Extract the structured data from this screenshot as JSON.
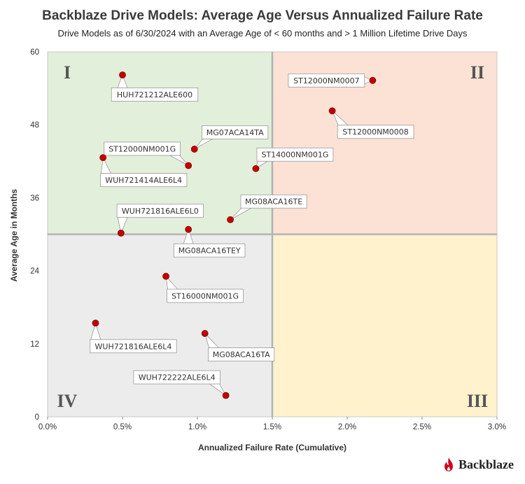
{
  "chart_data": {
    "type": "scatter",
    "title": "Backblaze Drive Models: Average Age Versus Annualized Failure Rate",
    "subtitle": "Drive Models as of 6/30/2024 with an Average Age of < 60 months and > 1 Million Lifetime Drive Days",
    "xlabel": "Annualized Failure Rate (Cumulative)",
    "ylabel": "Average Age in Months",
    "xlim": [
      0,
      3.0
    ],
    "ylim": [
      0,
      60
    ],
    "xticks": [
      0,
      0.5,
      1.0,
      1.5,
      2.0,
      2.5,
      3.0
    ],
    "xtick_labels": [
      "0.0%",
      "0.5%",
      "1.0%",
      "1.5%",
      "2.0%",
      "2.5%",
      "3.0%"
    ],
    "yticks": [
      0,
      12,
      24,
      36,
      48,
      60
    ],
    "ytick_labels": [
      "0",
      "12",
      "24",
      "36",
      "48",
      "60"
    ],
    "quadrant_split": {
      "x": 1.5,
      "y": 30
    },
    "quadrant_labels": [
      "I",
      "II",
      "III",
      "IV"
    ],
    "quadrant_colors": {
      "I": "#e2efda",
      "II": "#fbe2d5",
      "III": "#fff2cc",
      "IV": "#ececec"
    },
    "point_color": "#c00000",
    "points": [
      {
        "label": "HUH721212ALE600",
        "x": 0.5,
        "y": 56.2
      },
      {
        "label": "ST12000NM0007",
        "x": 2.17,
        "y": 55.3
      },
      {
        "label": "ST12000NM0008",
        "x": 1.9,
        "y": 50.3
      },
      {
        "label": "MG07ACA14TA",
        "x": 0.98,
        "y": 44.0
      },
      {
        "label": "ST12000NM001G",
        "x": 0.94,
        "y": 41.3
      },
      {
        "label": "WUH721414ALE6L4",
        "x": 0.37,
        "y": 42.6
      },
      {
        "label": "ST14000NM001G",
        "x": 1.39,
        "y": 40.8
      },
      {
        "label": "MG08ACA16TE",
        "x": 1.22,
        "y": 32.4
      },
      {
        "label": "WUH721816ALE6L0",
        "x": 0.49,
        "y": 30.2
      },
      {
        "label": "MG08ACA16TEY",
        "x": 0.94,
        "y": 30.8
      },
      {
        "label": "ST16000NM001G",
        "x": 0.79,
        "y": 23.1
      },
      {
        "label": "WUH721816ALE6L4",
        "x": 0.32,
        "y": 15.4
      },
      {
        "label": "MG08ACA16TA",
        "x": 1.05,
        "y": 13.7
      },
      {
        "label": "WUH722222ALE6L4",
        "x": 1.19,
        "y": 3.5
      }
    ]
  },
  "brand": {
    "name": "Backblaze"
  }
}
